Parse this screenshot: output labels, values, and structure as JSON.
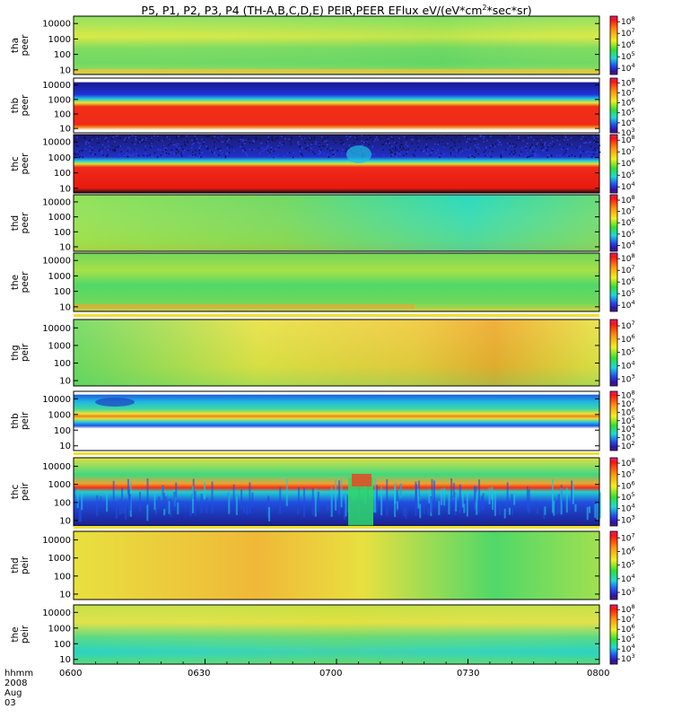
{
  "title": {
    "text": "P5, P1, P2, P3, P4 (TH-A,B,C,D,E) PEIR,PEER EFlux eV/(eV*cm",
    "sup": "2",
    "tail": "*sec*sr)"
  },
  "x_axis": {
    "prefix_label": "hhmm",
    "date_label": "2008 Aug 03",
    "ticks": [
      "0600",
      "0630",
      "0700",
      "0730",
      "0800"
    ]
  },
  "chart_data": {
    "type": "heatmap",
    "title": "P5, P1, P2, P3, P4 (TH-A,B,C,D,E) PEIR,PEER EFlux eV/(eV*cm^2*sec*sr)",
    "x_range": [
      "0600",
      "0800"
    ],
    "date": "2008 Aug 03",
    "y_scale": "log",
    "colorbar_scale": "log",
    "panels": [
      {
        "probe": "tha",
        "instrument": "peer",
        "y_ticks": [
          "10",
          "100",
          "1000",
          "10000"
        ],
        "y_range": [
          5,
          30000
        ],
        "cbar_exponents": [
          "4",
          "5",
          "6",
          "7",
          "8"
        ],
        "cbar_range": [
          3000,
          300000000
        ]
      },
      {
        "probe": "thb",
        "instrument": "peer",
        "y_ticks": [
          "10",
          "100",
          "1000",
          "10000"
        ],
        "y_range": [
          5,
          30000
        ],
        "cbar_exponents": [
          "3",
          "4",
          "5",
          "6",
          "7",
          "8"
        ],
        "cbar_range": [
          1000,
          300000000
        ]
      },
      {
        "probe": "thc",
        "instrument": "peer",
        "y_ticks": [
          "10",
          "100",
          "1000",
          "10000"
        ],
        "y_range": [
          5,
          30000
        ],
        "cbar_exponents": [
          "4",
          "5",
          "6",
          "7",
          "8"
        ],
        "cbar_range": [
          3000,
          300000000
        ]
      },
      {
        "probe": "thd",
        "instrument": "peer",
        "y_ticks": [
          "10",
          "100",
          "1000",
          "10000"
        ],
        "y_range": [
          5,
          30000
        ],
        "cbar_exponents": [
          "4",
          "5",
          "6",
          "7",
          "8"
        ],
        "cbar_range": [
          3000,
          300000000
        ]
      },
      {
        "probe": "the",
        "instrument": "peer",
        "y_ticks": [
          "10",
          "100",
          "1000",
          "10000"
        ],
        "y_range": [
          5,
          30000
        ],
        "cbar_exponents": [
          "4",
          "5",
          "6",
          "7",
          "8"
        ],
        "cbar_range": [
          3000,
          300000000
        ]
      },
      {
        "probe": "thg",
        "instrument": "peir",
        "y_ticks": [
          "10",
          "100",
          "1000",
          "10000"
        ],
        "y_range": [
          5,
          30000
        ],
        "cbar_exponents": [
          "3",
          "4",
          "5",
          "6",
          "7"
        ],
        "cbar_range": [
          300,
          30000000
        ]
      },
      {
        "probe": "thb",
        "instrument": "peir",
        "y_ticks": [
          "10",
          "100",
          "1000",
          "10000"
        ],
        "y_range": [
          5,
          30000
        ],
        "cbar_exponents": [
          "2",
          "3",
          "4",
          "5",
          "6",
          "7",
          "8"
        ],
        "cbar_range": [
          30,
          300000000
        ]
      },
      {
        "probe": "thc",
        "instrument": "peir",
        "y_ticks": [
          "10",
          "100",
          "1000",
          "10000"
        ],
        "y_range": [
          5,
          30000
        ],
        "cbar_exponents": [
          "3",
          "4",
          "5",
          "6",
          "7",
          "8"
        ],
        "cbar_range": [
          300,
          300000000
        ]
      },
      {
        "probe": "thd",
        "instrument": "peir",
        "y_ticks": [
          "10",
          "100",
          "1000",
          "10000"
        ],
        "y_range": [
          5,
          30000
        ],
        "cbar_exponents": [
          "3",
          "4",
          "5",
          "6",
          "7"
        ],
        "cbar_range": [
          300,
          30000000
        ]
      },
      {
        "probe": "the",
        "instrument": "peir",
        "y_ticks": [
          "10",
          "100",
          "1000",
          "10000"
        ],
        "y_range": [
          5,
          30000
        ],
        "cbar_exponents": [
          "3",
          "4",
          "5",
          "6",
          "7",
          "8"
        ],
        "cbar_range": [
          300,
          300000000
        ]
      }
    ]
  },
  "colors": {
    "green": "#58d85a",
    "yellow": "#e8e83a",
    "orange": "#f0b030",
    "red": "#f02a1a",
    "cyan": "#20d8c8",
    "blue": "#2030e0",
    "navy": "#1a1a8a"
  }
}
